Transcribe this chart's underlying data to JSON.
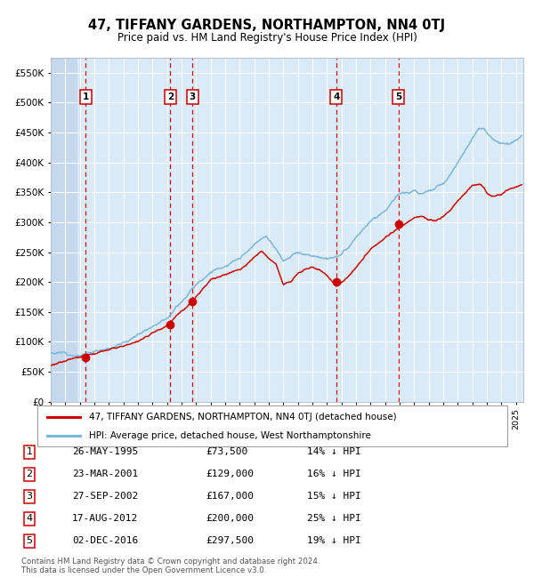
{
  "title": "47, TIFFANY GARDENS, NORTHAMPTON, NN4 0TJ",
  "subtitle": "Price paid vs. HM Land Registry's House Price Index (HPI)",
  "legend_line1": "47, TIFFANY GARDENS, NORTHAMPTON, NN4 0TJ (detached house)",
  "legend_line2": "HPI: Average price, detached house, West Northamptonshire",
  "footer1": "Contains HM Land Registry data © Crown copyright and database right 2024.",
  "footer2": "This data is licensed under the Open Government Licence v3.0.",
  "transactions": [
    {
      "num": 1,
      "date": "26-MAY-1995",
      "price": 73500,
      "pct": "14%",
      "x_year": 1995.4
    },
    {
      "num": 2,
      "date": "23-MAR-2001",
      "price": 129000,
      "pct": "16%",
      "x_year": 2001.23
    },
    {
      "num": 3,
      "date": "27-SEP-2002",
      "price": 167000,
      "pct": "15%",
      "x_year": 2002.74
    },
    {
      "num": 4,
      "date": "17-AUG-2012",
      "price": 200000,
      "pct": "25%",
      "x_year": 2012.63
    },
    {
      "num": 5,
      "date": "02-DEC-2016",
      "price": 297500,
      "pct": "19%",
      "x_year": 2016.92
    }
  ],
  "hpi_color": "#7ab8d9",
  "price_color": "#cc0000",
  "dashed_color": "#cc0000",
  "plot_bg_color": "#daeaf7",
  "left_hatch_color": "#c5d8ec",
  "ylim": [
    0,
    575000
  ],
  "yticks": [
    0,
    50000,
    100000,
    150000,
    200000,
    250000,
    300000,
    350000,
    400000,
    450000,
    500000,
    550000
  ],
  "xlim_start": 1993.0,
  "xlim_end": 2025.5
}
